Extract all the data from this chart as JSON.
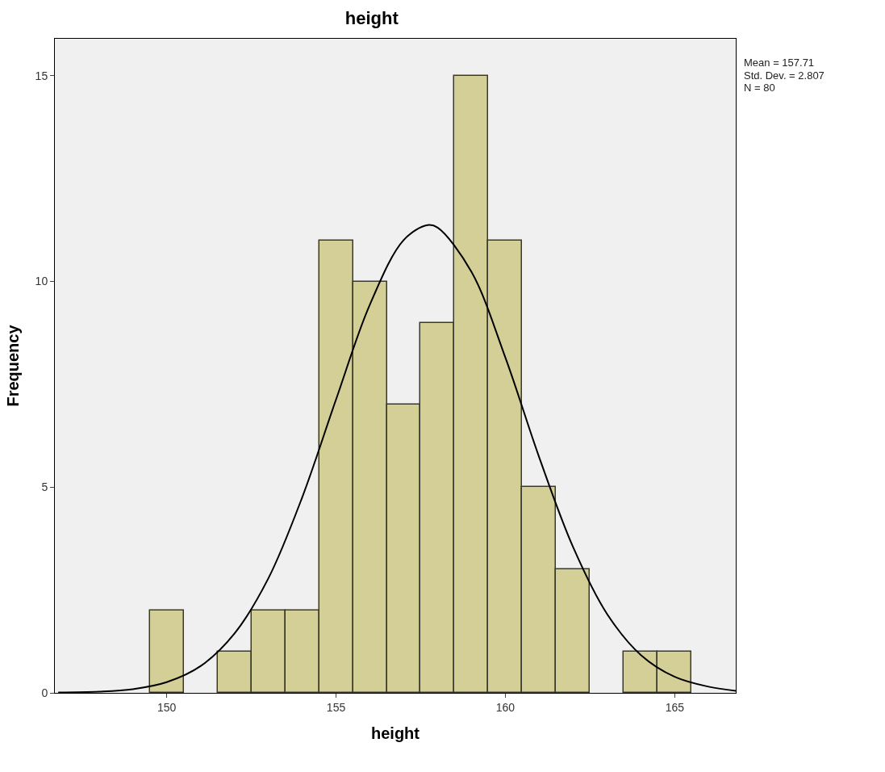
{
  "chart_data": {
    "type": "histogram",
    "title": "height",
    "xlabel": "height",
    "ylabel": "Frequency",
    "bins": [
      149.5,
      150.5,
      151.5,
      152.5,
      153.5,
      154.5,
      155.5,
      156.5,
      157.5,
      158.5,
      159.5,
      160.5,
      161.5,
      162.5,
      163.5,
      164.5,
      165.5
    ],
    "values": [
      2,
      0,
      1,
      2,
      2,
      11,
      10,
      7,
      9,
      15,
      11,
      5,
      3,
      0,
      1,
      1
    ],
    "color": "#d4cf97",
    "series": [
      {
        "type": "line",
        "color": "#000000",
        "x": [
          146.8,
          148,
          149,
          150,
          151,
          152,
          153,
          154,
          155,
          156,
          157,
          157.7,
          158,
          159,
          160,
          161,
          162,
          163,
          164,
          165,
          166,
          166.8
        ],
        "values": [
          0.01,
          0.03,
          0.09,
          0.26,
          0.65,
          1.44,
          2.78,
          4.75,
          7.13,
          9.44,
          11.01,
          11.37,
          11.31,
          10.23,
          8.15,
          5.72,
          3.54,
          1.92,
          0.92,
          0.39,
          0.15,
          0.05
        ]
      }
    ],
    "xlim": [
      146.7,
      166.8
    ],
    "ylim": [
      0,
      15.9
    ],
    "xticks": [
      150,
      155,
      160,
      165
    ],
    "yticks": [
      0,
      5,
      10,
      15
    ],
    "grid": false,
    "annotations": [
      "Mean = 157.71",
      "Std. Dev. = 2.807",
      "N = 80"
    ]
  }
}
